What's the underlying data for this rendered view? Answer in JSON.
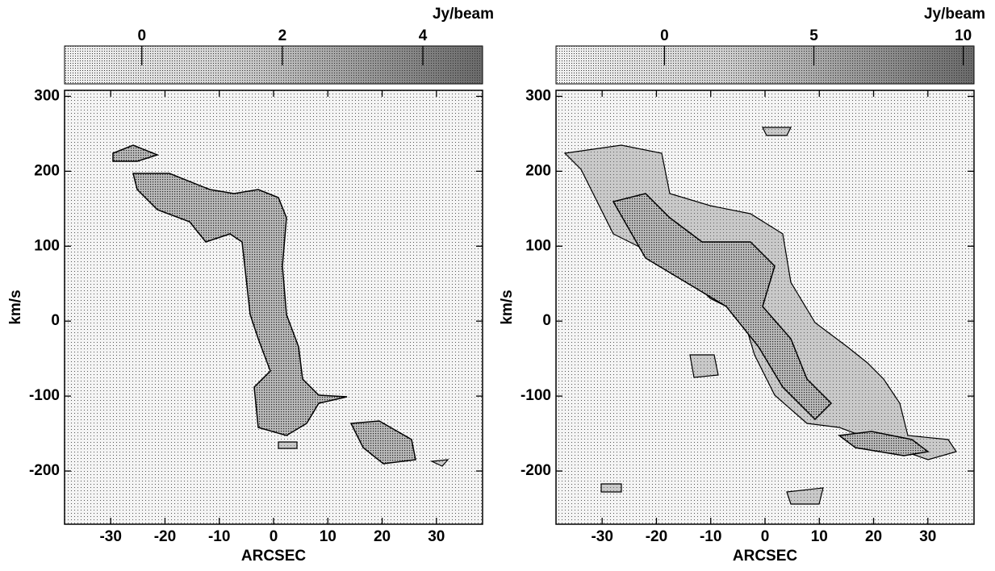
{
  "chart_data": [
    {
      "type": "image",
      "x_label": "ARCSEC",
      "y_label": "km/s",
      "xlim": [
        -38.5,
        38.5
      ],
      "ylim": [
        -271,
        308
      ],
      "xticks": [
        -30,
        -20,
        -10,
        0,
        10,
        20,
        30
      ],
      "yticks": [
        -200,
        -100,
        0,
        100,
        200,
        300
      ],
      "colorbar": {
        "label": "Jy/beam",
        "lim": [
          -1.1,
          4.85
        ],
        "ticks": [
          0,
          2,
          4
        ]
      }
    },
    {
      "type": "image",
      "x_label": "ARCSEC",
      "y_label": "km/s",
      "xlim": [
        -38.5,
        38.5
      ],
      "ylim": [
        -271,
        308
      ],
      "xticks": [
        -30,
        -20,
        -10,
        0,
        10,
        20,
        30
      ],
      "yticks": [
        -200,
        -100,
        0,
        100,
        200,
        300
      ],
      "colorbar": {
        "label": "Jy/beam",
        "lim": [
          -3.63,
          10.36
        ],
        "ticks": [
          0,
          5,
          10
        ]
      }
    }
  ]
}
